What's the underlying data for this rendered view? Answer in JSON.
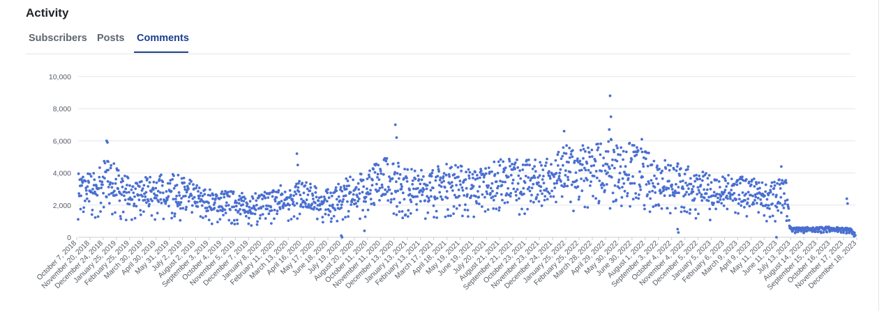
{
  "header": {
    "title": "Activity"
  },
  "tabs": [
    {
      "label": "Subscribers",
      "active": false
    },
    {
      "label": "Posts",
      "active": false
    },
    {
      "label": "Comments",
      "active": true
    }
  ],
  "colors": {
    "accent": "#1a3d8f",
    "point": "#4a6fd1",
    "grid": "#e3e5e8"
  },
  "chart_data": {
    "type": "scatter",
    "title": "",
    "xlabel": "",
    "ylabel": "",
    "x_range": [
      "2018-10-07",
      "2023-12-31"
    ],
    "ylim": [
      0,
      10000
    ],
    "grid": true,
    "y_ticks": [
      "0",
      "2,000",
      "4,000",
      "6,000",
      "8,000",
      "10,000"
    ],
    "x_tick_labels": [
      "October 7, 2018",
      "November 20, 2018",
      "December 24, 2018",
      "January 25, 2019",
      "February 25, 2019",
      "March 30, 2019",
      "April 30, 2019",
      "May 31, 2019",
      "July 2, 2019",
      "August 2, 2019",
      "September 3, 2019",
      "October 4, 2019",
      "November 5, 2019",
      "December 7, 2019",
      "January 8, 2020",
      "February 11, 2020",
      "March 13, 2020",
      "April 16, 2020",
      "May 17, 2020",
      "June 18, 2020",
      "July 19, 2020",
      "August 20, 2020",
      "October 11, 2020",
      "November 11, 2020",
      "December 13, 2020",
      "January 13, 2021",
      "February 13, 2021",
      "March 17, 2021",
      "April 18, 2021",
      "May 19, 2021",
      "June 19, 2021",
      "July 20, 2021",
      "August 21, 2021",
      "September 21, 2021",
      "October 23, 2021",
      "November 23, 2021",
      "December 24, 2021",
      "January 25, 2022",
      "February 25, 2022",
      "March 28, 2022",
      "April 29, 2022",
      "May 30, 2022",
      "June 30, 2022",
      "August 1, 2022",
      "September 3, 2022",
      "October 4, 2022",
      "November 4, 2022",
      "December 5, 2022",
      "January 5, 2023",
      "February 6, 2023",
      "March 9, 2023",
      "April 9, 2023",
      "May 11, 2023",
      "June 11, 2023",
      "July 13, 2023",
      "August 14, 2023",
      "September 15, 2023",
      "October 16, 2023",
      "November 17, 2023",
      "December 18, 2023"
    ],
    "series": [
      {
        "trend": [
          [
            "2018-10-07",
            2900
          ],
          [
            "2018-11-20",
            2900
          ],
          [
            "2018-12-10",
            3500
          ],
          [
            "2018-12-24",
            3400
          ],
          [
            "2019-01-25",
            2900
          ],
          [
            "2019-02-25",
            2500
          ],
          [
            "2019-03-30",
            2700
          ],
          [
            "2019-04-30",
            2800
          ],
          [
            "2019-05-31",
            2800
          ],
          [
            "2019-07-02",
            2600
          ],
          [
            "2019-08-02",
            2300
          ],
          [
            "2019-09-03",
            2100
          ],
          [
            "2019-10-04",
            2100
          ],
          [
            "2019-11-05",
            2000
          ],
          [
            "2019-12-07",
            1900
          ],
          [
            "2020-01-08",
            2000
          ],
          [
            "2020-02-11",
            2300
          ],
          [
            "2020-03-13",
            2500
          ],
          [
            "2020-04-16",
            2500
          ],
          [
            "2020-05-17",
            2200
          ],
          [
            "2020-06-18",
            2100
          ],
          [
            "2020-07-19",
            2500
          ],
          [
            "2020-08-20",
            2800
          ],
          [
            "2020-10-11",
            3300
          ],
          [
            "2020-11-11",
            3700
          ],
          [
            "2020-12-13",
            3100
          ],
          [
            "2021-01-13",
            3000
          ],
          [
            "2021-02-13",
            3000
          ],
          [
            "2021-03-17",
            3200
          ],
          [
            "2021-04-18",
            3300
          ],
          [
            "2021-05-19",
            3100
          ],
          [
            "2021-06-19",
            3100
          ],
          [
            "2021-07-20",
            3300
          ],
          [
            "2021-08-21",
            3500
          ],
          [
            "2021-09-21",
            3500
          ],
          [
            "2021-10-23",
            3400
          ],
          [
            "2021-11-23",
            3500
          ],
          [
            "2021-12-24",
            3800
          ],
          [
            "2022-01-25",
            4100
          ],
          [
            "2022-02-25",
            4200
          ],
          [
            "2022-03-28",
            4100
          ],
          [
            "2022-04-29",
            4400
          ],
          [
            "2022-05-30",
            4100
          ],
          [
            "2022-06-30",
            4200
          ],
          [
            "2022-08-01",
            3800
          ],
          [
            "2022-09-03",
            3600
          ],
          [
            "2022-10-04",
            3400
          ],
          [
            "2022-11-04",
            3200
          ],
          [
            "2022-12-05",
            3000
          ],
          [
            "2023-01-05",
            2800
          ],
          [
            "2023-02-06",
            2700
          ],
          [
            "2023-03-09",
            2800
          ],
          [
            "2023-04-09",
            2700
          ],
          [
            "2023-05-11",
            2500
          ],
          [
            "2023-06-11",
            2400
          ],
          [
            "2023-07-13",
            2700
          ],
          [
            "2023-07-25",
            500
          ],
          [
            "2023-08-14",
            480
          ],
          [
            "2023-09-15",
            500
          ],
          [
            "2023-10-16",
            520
          ],
          [
            "2023-11-17",
            480
          ],
          [
            "2023-12-18",
            450
          ],
          [
            "2023-12-31",
            200
          ]
        ],
        "spikes": [
          [
            "2018-12-16",
            6000
          ],
          [
            "2018-12-18",
            5900
          ],
          [
            "2018-12-20",
            4700
          ],
          [
            "2020-03-28",
            5200
          ],
          [
            "2020-03-30",
            4500
          ],
          [
            "2020-11-25",
            7000
          ],
          [
            "2020-11-28",
            6200
          ],
          [
            "2022-01-14",
            6600
          ],
          [
            "2022-05-07",
            8800
          ],
          [
            "2022-05-09",
            7500
          ],
          [
            "2022-05-05",
            6700
          ],
          [
            "2022-07-24",
            6100
          ],
          [
            "2023-07-02",
            4400
          ],
          [
            "2023-12-10",
            2400
          ],
          [
            "2023-12-12",
            2100
          ]
        ],
        "dips": [
          [
            "2020-07-15",
            100
          ],
          [
            "2020-07-17",
            0
          ],
          [
            "2020-09-10",
            400
          ],
          [
            "2022-10-20",
            500
          ],
          [
            "2022-10-22",
            300
          ],
          [
            "2023-06-20",
            0
          ],
          [
            "2023-12-28",
            50
          ]
        ]
      }
    ]
  }
}
